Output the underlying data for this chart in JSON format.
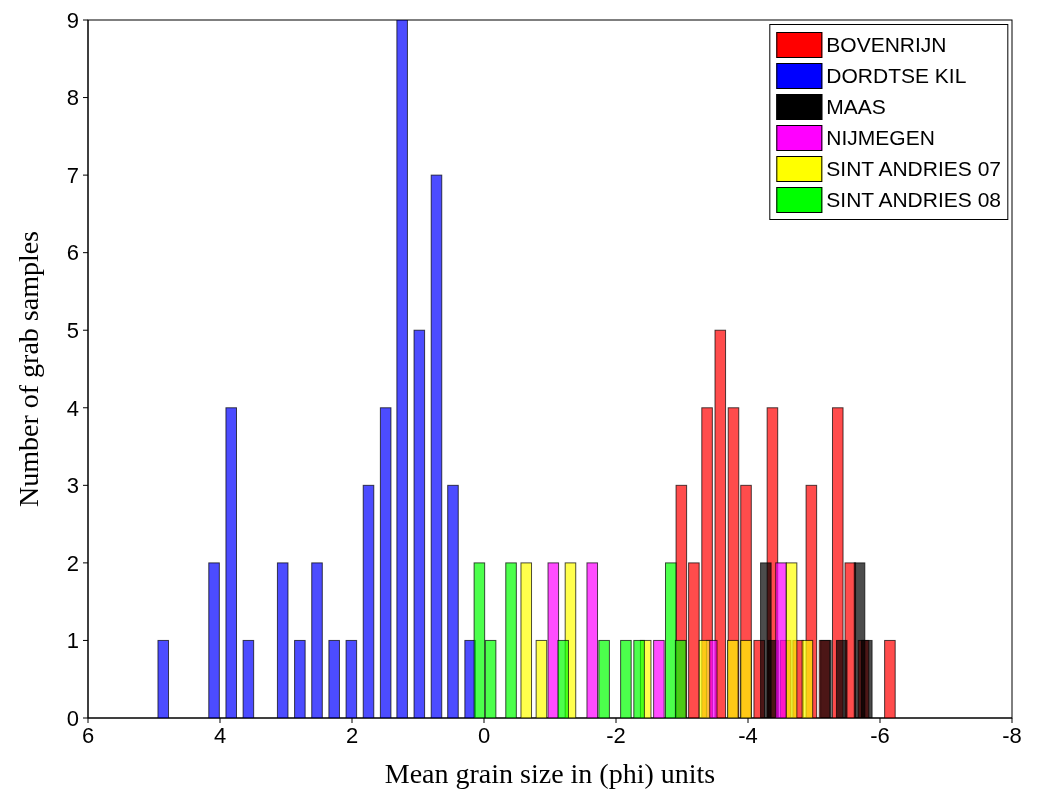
{
  "chart_data": {
    "type": "bar",
    "xlabel": "Mean grain size in (phi) units",
    "ylabel": "Number of grab samples",
    "xlim": [
      6,
      -8
    ],
    "xticks": [
      6,
      4,
      2,
      0,
      -2,
      -4,
      -6,
      -8
    ],
    "ylim": [
      0,
      9
    ],
    "yticks": [
      0,
      1,
      2,
      3,
      4,
      5,
      6,
      7,
      8,
      9
    ],
    "legend": "top right",
    "series": [
      {
        "name": "BOVENRIJN",
        "color": "#ff0000",
        "x": [
          -2.99,
          -3.18,
          -3.38,
          -3.58,
          -3.78,
          -3.97,
          -4.17,
          -4.37,
          -4.57,
          -4.76,
          -4.96,
          -5.16,
          -5.36,
          -5.55,
          -5.75,
          -6.15
        ],
        "values": [
          3,
          2,
          4,
          5,
          4,
          3,
          1,
          4,
          1,
          1,
          3,
          1,
          4,
          2,
          1,
          1
        ]
      },
      {
        "name": "DORDTSE KIL",
        "color": "#0000ff",
        "x": [
          4.86,
          4.09,
          3.83,
          3.57,
          3.05,
          2.79,
          2.53,
          2.27,
          2.01,
          1.75,
          1.49,
          1.24,
          0.98,
          0.72,
          0.47,
          0.21
        ],
        "values": [
          1,
          2,
          4,
          1,
          2,
          1,
          2,
          1,
          1,
          3,
          4,
          9,
          5,
          7,
          3,
          1
        ]
      },
      {
        "name": "MAAS",
        "color": "#000000",
        "x": [
          -4.27,
          -4.38,
          -5.18,
          -5.42,
          -5.69,
          -5.8
        ],
        "values": [
          2,
          1,
          1,
          1,
          2,
          1
        ]
      },
      {
        "name": "NIJMEGEN",
        "color": "#ff00ff",
        "x": [
          -1.05,
          -1.64,
          -2.65,
          -3.45,
          -4.5
        ],
        "values": [
          2,
          2,
          1,
          1,
          2
        ]
      },
      {
        "name": "SINT ANDRIES 07",
        "color": "#ffff00",
        "x": [
          -0.64,
          -0.87,
          -1.31,
          -2.45,
          -3.34,
          -3.77,
          -3.97,
          -4.66,
          -4.9
        ],
        "values": [
          2,
          1,
          2,
          1,
          1,
          1,
          1,
          2,
          1
        ]
      },
      {
        "name": "SINT ANDRIES 08",
        "color": "#00ff00",
        "x": [
          0.07,
          -0.1,
          -0.41,
          -1.2,
          -1.82,
          -2.15,
          -2.35,
          -2.83,
          -2.98
        ],
        "values": [
          2,
          1,
          2,
          1,
          1,
          1,
          1,
          2,
          1
        ]
      }
    ]
  }
}
